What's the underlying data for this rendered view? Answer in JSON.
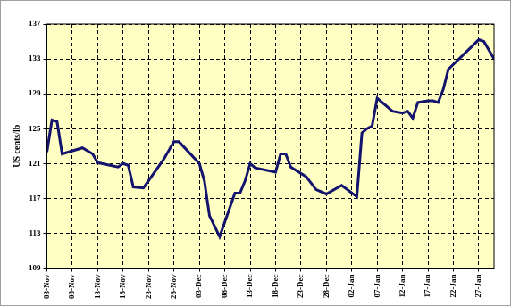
{
  "chart_data": {
    "type": "line",
    "y_label": "US cents/lb",
    "categories": [
      "03-Nov",
      null,
      null,
      null,
      null,
      "08-Nov",
      null,
      null,
      null,
      null,
      "13-Nov",
      null,
      null,
      null,
      null,
      "18-Nov",
      null,
      null,
      null,
      null,
      "23-Nov",
      null,
      null,
      null,
      null,
      "28-Nov",
      null,
      null,
      null,
      null,
      "03-Dec",
      null,
      null,
      null,
      null,
      "08-Dec",
      null,
      null,
      null,
      null,
      "13-Dec",
      null,
      null,
      null,
      null,
      "18-Dec",
      null,
      null,
      null,
      null,
      "23-Dec",
      null,
      null,
      null,
      null,
      "28-Dec",
      null,
      null,
      null,
      null,
      "02-Jan",
      null,
      null,
      null,
      null,
      "07-Jan",
      null,
      null,
      null,
      null,
      "12-Jan",
      null,
      null,
      null,
      null,
      "17-Jan",
      null,
      null,
      null,
      null,
      "22-Jan",
      null,
      null,
      null,
      null,
      "27-Jan",
      null,
      null,
      null
    ],
    "values": [
      122.3,
      126.0,
      125.8,
      122.1,
      null,
      null,
      null,
      122.8,
      null,
      122.1,
      121.1,
      null,
      null,
      null,
      120.6,
      121.0,
      120.8,
      118.3,
      null,
      118.2,
      null,
      null,
      null,
      121.5,
      null,
      123.5,
      123.5,
      null,
      null,
      null,
      121.0,
      119.0,
      115.0,
      null,
      112.6,
      null,
      null,
      117.6,
      117.6,
      119.0,
      121.0,
      120.5,
      null,
      null,
      null,
      120.0,
      122.1,
      122.1,
      120.6,
      null,
      null,
      119.5,
      null,
      118.0,
      null,
      117.5,
      null,
      null,
      118.5,
      null,
      null,
      117.2,
      124.5,
      125.0,
      125.3,
      128.5,
      null,
      null,
      127.0,
      null,
      126.8,
      127.0,
      126.2,
      128.0,
      null,
      128.2,
      128.2,
      128.0,
      129.5,
      131.8,
      null,
      null,
      null,
      null,
      null,
      135.2,
      135.0,
      null,
      133.0
    ],
    "color": "#14146e",
    "ylim": [
      109,
      137
    ],
    "yticks": [
      109,
      113,
      117,
      121,
      125,
      129,
      133,
      137
    ],
    "grid": true
  }
}
